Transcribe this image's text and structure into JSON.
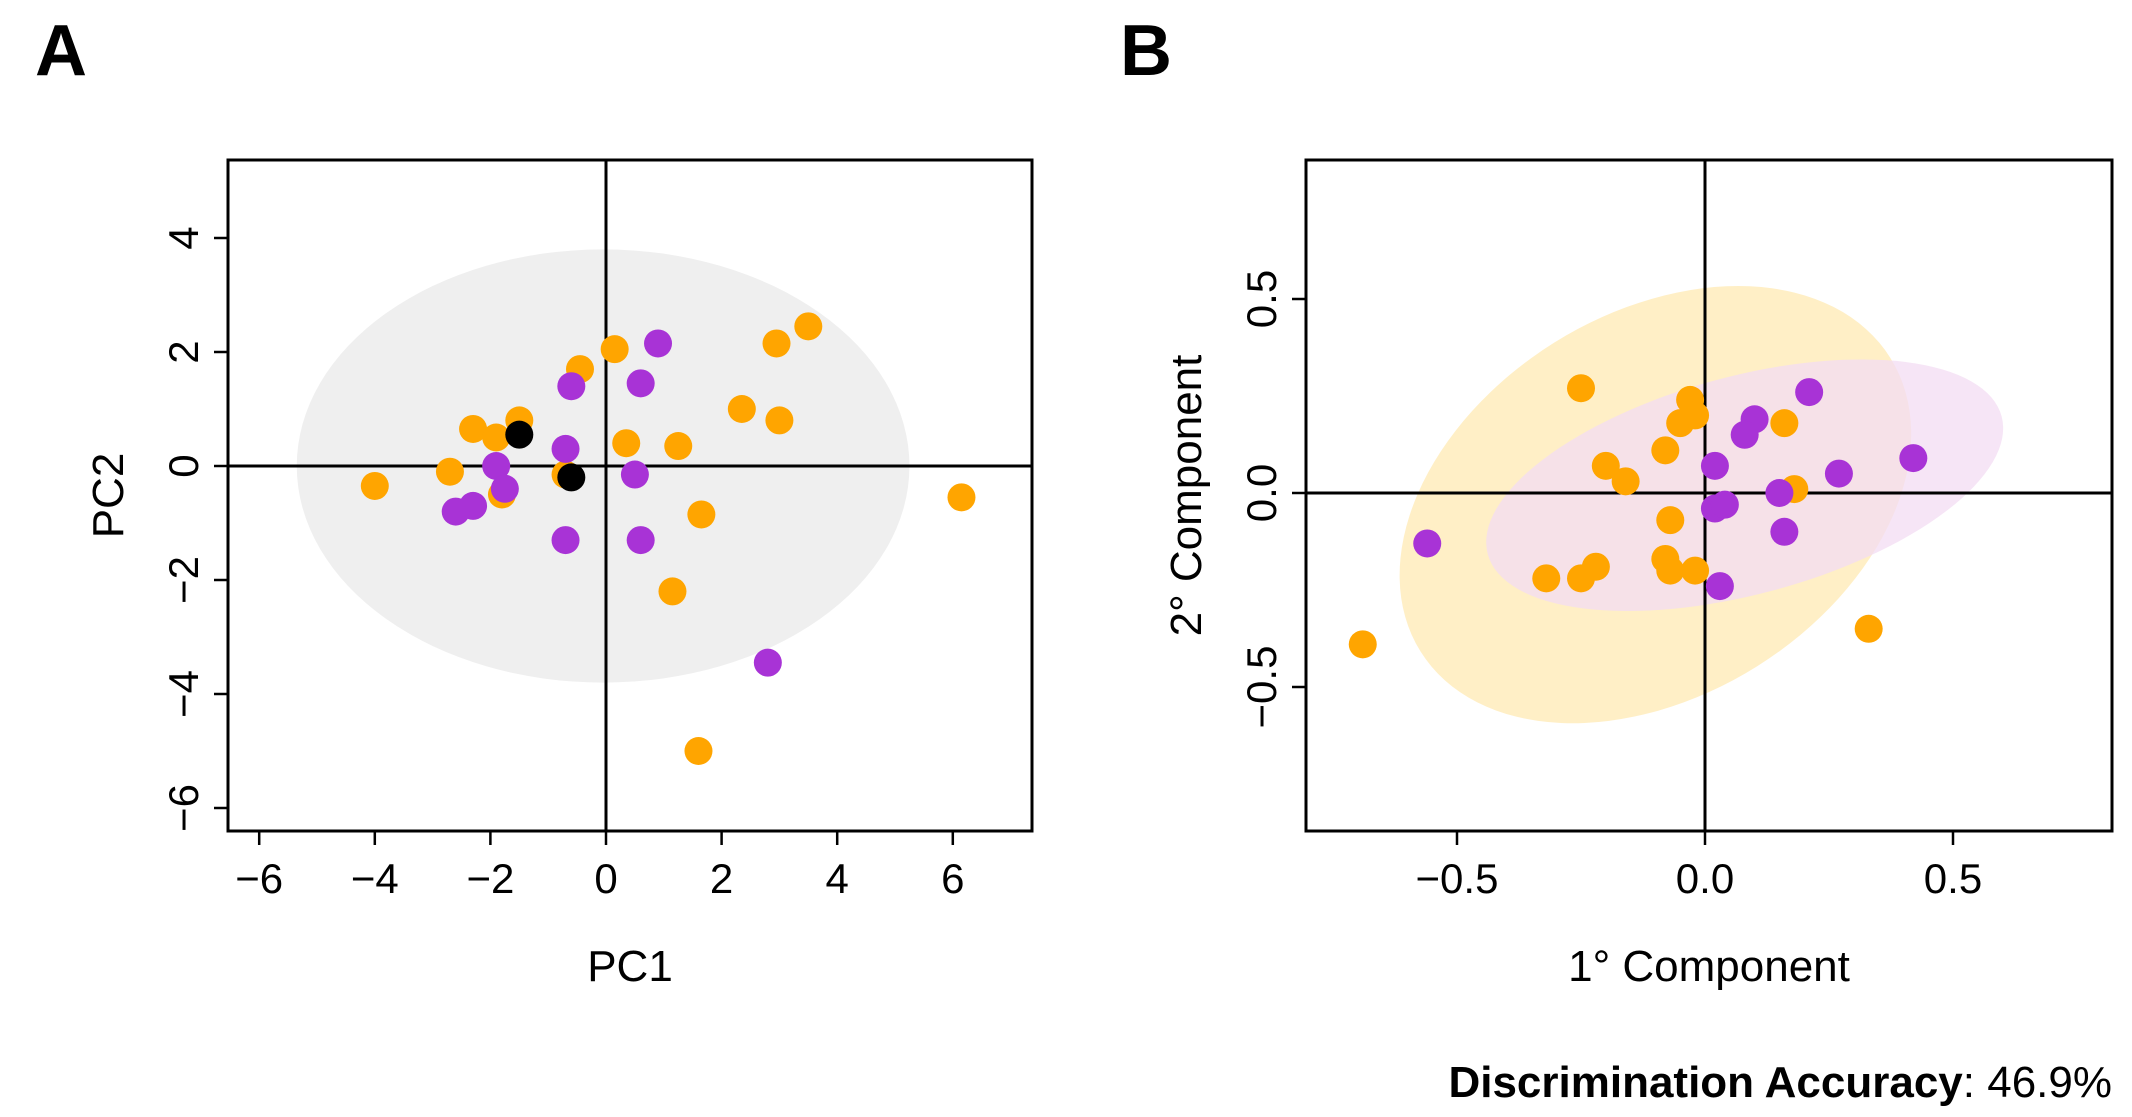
{
  "chart_data": [
    {
      "type": "scatter",
      "panel_label": "A",
      "xlabel": "PC1",
      "ylabel": "PC2",
      "xlim": [
        -6.5,
        7.4
      ],
      "ylim": [
        -6.5,
        5.3
      ],
      "xticks": [
        -6,
        -4,
        -2,
        0,
        2,
        4,
        6
      ],
      "yticks": [
        -6,
        -4,
        -2,
        0,
        2,
        4
      ],
      "xtick_labels": [
        "−6",
        "−4",
        "−2",
        "0",
        "2",
        "4",
        "6"
      ],
      "ytick_labels": [
        "−6",
        "−4",
        "−2",
        "0",
        "2",
        "4"
      ],
      "reference_lines": {
        "x": 0,
        "y": 0
      },
      "ellipses": [
        {
          "color": "#efefef",
          "center": [
            -0.05,
            0.0
          ],
          "semi_axes": [
            5.3,
            3.8
          ]
        }
      ],
      "series": [
        {
          "name": "orange",
          "color": "#ffa500",
          "points": [
            [
              -4,
              -0.35
            ],
            [
              -2.7,
              -0.1
            ],
            [
              -2.3,
              0.65
            ],
            [
              -1.9,
              0.5
            ],
            [
              -1.5,
              0.8
            ],
            [
              -1.8,
              -0.5
            ],
            [
              -0.7,
              -0.15
            ],
            [
              -0.45,
              1.7
            ],
            [
              0.15,
              2.05
            ],
            [
              0.35,
              0.4
            ],
            [
              1.25,
              0.35
            ],
            [
              1.65,
              -0.85
            ],
            [
              1.15,
              -2.2
            ],
            [
              1.6,
              -5.0
            ],
            [
              2.35,
              1.0
            ],
            [
              2.95,
              2.15
            ],
            [
              3.0,
              0.8
            ],
            [
              3.5,
              2.45
            ],
            [
              6.15,
              -0.55
            ]
          ]
        },
        {
          "name": "purple",
          "color": "#a833d6",
          "points": [
            [
              0.9,
              2.15
            ],
            [
              -0.6,
              1.4
            ],
            [
              0.6,
              1.45
            ],
            [
              -0.7,
              0.3
            ],
            [
              0.5,
              -0.15
            ],
            [
              -1.9,
              0.0
            ],
            [
              -1.75,
              -0.4
            ],
            [
              -2.3,
              -0.7
            ],
            [
              -2.6,
              -0.8
            ],
            [
              -0.7,
              -1.3
            ],
            [
              0.6,
              -1.3
            ],
            [
              2.8,
              -3.45
            ]
          ]
        },
        {
          "name": "black",
          "color": "#000000",
          "points": [
            [
              -1.5,
              0.55
            ],
            [
              -0.6,
              -0.2
            ]
          ]
        }
      ]
    },
    {
      "type": "scatter",
      "panel_label": "B",
      "xlabel": "1° Component",
      "ylabel": "2° Component",
      "xlim": [
        -0.87,
        0.82
      ],
      "ylim": [
        -0.86,
        0.86
      ],
      "xticks": [
        -0.5,
        0.0,
        0.5
      ],
      "yticks": [
        -0.5,
        0.0,
        0.5
      ],
      "xtick_labels": [
        "−0.5",
        "0.0",
        "0.5"
      ],
      "ytick_labels": [
        "−0.5",
        "0.0",
        "0.5"
      ],
      "reference_lines": {
        "x": 0,
        "y": 0
      },
      "ellipses": [
        {
          "color": "#ffe9b3",
          "center": [
            -0.1,
            -0.03
          ],
          "angle_deg": -32
        },
        {
          "color": "#f3dcf3",
          "center": [
            0.08,
            0.02
          ],
          "angle_deg": -15
        }
      ],
      "series": [
        {
          "name": "orange",
          "color": "#ffa500",
          "points": [
            [
              -0.69,
              -0.39
            ],
            [
              -0.25,
              0.27
            ],
            [
              -0.32,
              -0.22
            ],
            [
              -0.25,
              -0.22
            ],
            [
              -0.22,
              -0.19
            ],
            [
              -0.2,
              0.07
            ],
            [
              -0.16,
              0.03
            ],
            [
              -0.08,
              0.11
            ],
            [
              -0.05,
              0.18
            ],
            [
              -0.03,
              0.24
            ],
            [
              -0.02,
              0.2
            ],
            [
              -0.07,
              -0.07
            ],
            [
              -0.08,
              -0.17
            ],
            [
              -0.07,
              -0.2
            ],
            [
              -0.02,
              -0.2
            ],
            [
              0.16,
              0.18
            ],
            [
              0.18,
              0.01
            ],
            [
              0.33,
              -0.35
            ]
          ]
        },
        {
          "name": "purple",
          "color": "#a833d6",
          "points": [
            [
              -0.56,
              -0.13
            ],
            [
              0.02,
              0.07
            ],
            [
              0.1,
              0.19
            ],
            [
              0.08,
              0.15
            ],
            [
              0.21,
              0.26
            ],
            [
              0.27,
              0.05
            ],
            [
              0.42,
              0.09
            ],
            [
              0.15,
              0.0
            ],
            [
              0.16,
              -0.1
            ],
            [
              0.02,
              -0.04
            ],
            [
              0.04,
              -0.03
            ],
            [
              0.03,
              -0.24
            ]
          ]
        }
      ]
    }
  ],
  "footer": {
    "accuracy_label": "Discrimination Accuracy",
    "accuracy_value": ": 46.9%"
  }
}
